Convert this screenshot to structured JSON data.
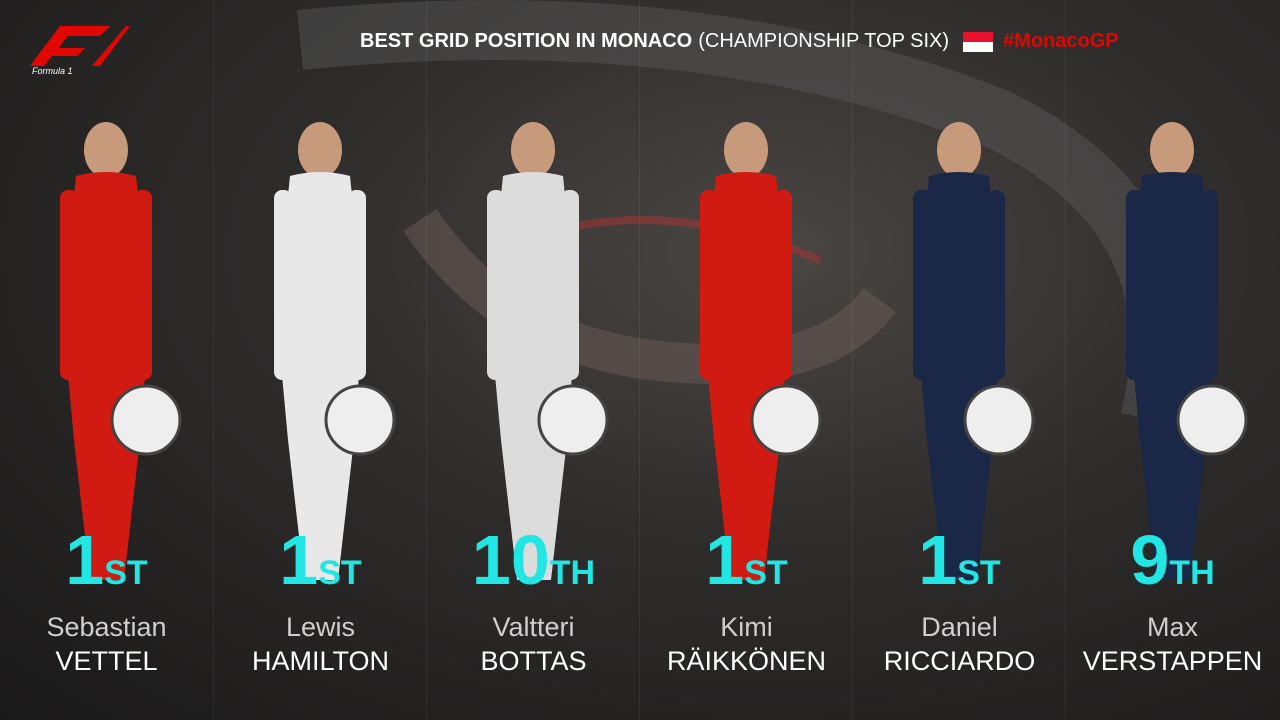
{
  "header": {
    "logo_text": "Formula 1",
    "title_bold": "BEST GRID POSITION IN MONACO",
    "title_rest": "(CHAMPIONSHIP TOP SIX)",
    "hashtag": "#MonacoGP"
  },
  "drivers": [
    {
      "position": 1,
      "suffix": "ST",
      "first_name": "Sebastian",
      "last_name": "VETTEL"
    },
    {
      "position": 1,
      "suffix": "ST",
      "first_name": "Lewis",
      "last_name": "HAMILTON"
    },
    {
      "position": 10,
      "suffix": "TH",
      "first_name": "Valtteri",
      "last_name": "BOTTAS"
    },
    {
      "position": 1,
      "suffix": "ST",
      "first_name": "Kimi",
      "last_name": "RÄIKKÖNEN"
    },
    {
      "position": 1,
      "suffix": "ST",
      "first_name": "Daniel",
      "last_name": "RICCIARDO"
    },
    {
      "position": 9,
      "suffix": "TH",
      "first_name": "Max",
      "last_name": "VERSTAPPEN"
    }
  ]
}
